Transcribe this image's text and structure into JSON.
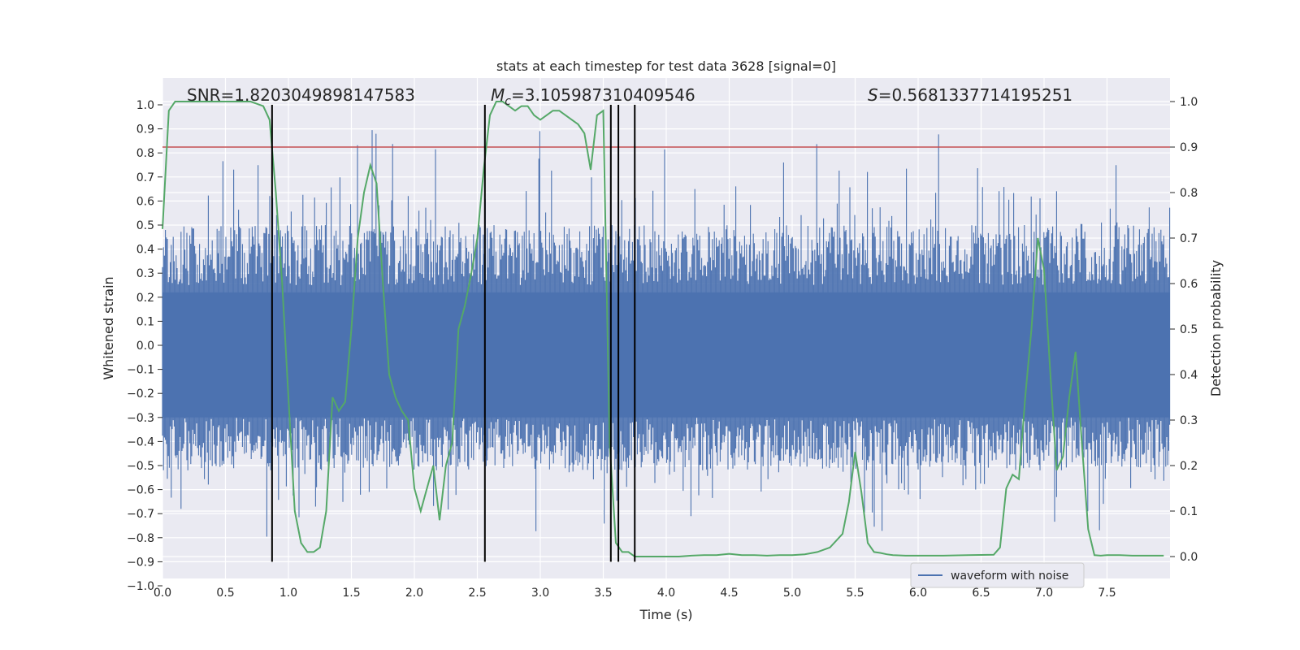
{
  "chart_data": {
    "type": "line",
    "title": "stats at each timestep for test data 3628 [signal=0]",
    "xlabel": "Time (s)",
    "ylabel": "Whitened strain",
    "ylabel_right": "Detection probability",
    "xlim": [
      0,
      8.0
    ],
    "ylim": [
      -1.0,
      1.1
    ],
    "ylim_right": [
      -0.05,
      1.05
    ],
    "x_ticks": [
      "0.0",
      "0.5",
      "1.0",
      "1.5",
      "2.0",
      "2.5",
      "3.0",
      "3.5",
      "4.0",
      "4.5",
      "5.0",
      "5.5",
      "6.0",
      "6.5",
      "7.0",
      "7.5"
    ],
    "y_ticks": [
      "−1.0",
      "−0.9",
      "−0.8",
      "−0.7",
      "−0.6",
      "−0.5",
      "−0.4",
      "−0.3",
      "−0.2",
      "−0.1",
      "0.0",
      "0.1",
      "0.2",
      "0.3",
      "0.4",
      "0.5",
      "0.6",
      "0.7",
      "0.8",
      "0.9",
      "1.0"
    ],
    "y_ticks_right": [
      "0.0",
      "0.1",
      "0.2",
      "0.3",
      "0.4",
      "0.5",
      "0.6",
      "0.7",
      "0.8",
      "0.9",
      "1.0"
    ],
    "annotations": {
      "snr": "SNR=1.8203049898147583",
      "mc_symbol": "M",
      "mc_sub": "c",
      "mc_value": "=3.105987310409546",
      "s_symbol": "S",
      "s_value": "=0.5681337714195251"
    },
    "legend": {
      "placement": "lower-right",
      "entries": [
        "waveform with noise"
      ]
    },
    "grid": true,
    "threshold": 0.9,
    "colors": {
      "waveform": "#4c72b0",
      "probability": "#55a868",
      "threshold": "#c44e52",
      "markers": "#000000",
      "background": "#eaeaf2",
      "grid": "#ffffff"
    },
    "vertical_markers": [
      0.87,
      2.56,
      3.56,
      3.62,
      3.75
    ],
    "probability_series": {
      "name": "Detection probability",
      "x": [
        0.0,
        0.05,
        0.1,
        0.15,
        0.2,
        0.3,
        0.4,
        0.5,
        0.6,
        0.7,
        0.8,
        0.85,
        0.9,
        0.95,
        1.0,
        1.05,
        1.1,
        1.15,
        1.2,
        1.25,
        1.3,
        1.35,
        1.4,
        1.45,
        1.5,
        1.55,
        1.6,
        1.65,
        1.7,
        1.75,
        1.8,
        1.85,
        1.9,
        1.95,
        2.0,
        2.05,
        2.1,
        2.15,
        2.2,
        2.25,
        2.3,
        2.35,
        2.4,
        2.45,
        2.5,
        2.55,
        2.6,
        2.65,
        2.7,
        2.75,
        2.8,
        2.85,
        2.9,
        2.95,
        3.0,
        3.05,
        3.1,
        3.15,
        3.2,
        3.25,
        3.3,
        3.35,
        3.4,
        3.45,
        3.5,
        3.55,
        3.6,
        3.65,
        3.7,
        3.75,
        3.8,
        3.85,
        3.9,
        3.95,
        4.0,
        4.05,
        4.1,
        4.2,
        4.3,
        4.4,
        4.5,
        4.6,
        4.7,
        4.8,
        4.9,
        5.0,
        5.1,
        5.2,
        5.3,
        5.4,
        5.45,
        5.5,
        5.55,
        5.6,
        5.65,
        5.7,
        5.75,
        5.8,
        5.9,
        6.0,
        6.2,
        6.4,
        6.6,
        6.65,
        6.7,
        6.75,
        6.8,
        6.85,
        6.9,
        6.95,
        7.0,
        7.05,
        7.1,
        7.15,
        7.2,
        7.25,
        7.3,
        7.35,
        7.4,
        7.45,
        7.5,
        7.6,
        7.7,
        7.8,
        7.9,
        7.95
      ],
      "y": [
        0.72,
        0.98,
        1.0,
        1.0,
        1.0,
        1.0,
        1.0,
        1.0,
        1.0,
        1.0,
        0.99,
        0.96,
        0.8,
        0.6,
        0.35,
        0.1,
        0.03,
        0.01,
        0.01,
        0.02,
        0.1,
        0.35,
        0.32,
        0.34,
        0.5,
        0.7,
        0.8,
        0.86,
        0.82,
        0.6,
        0.4,
        0.35,
        0.32,
        0.3,
        0.15,
        0.1,
        0.15,
        0.2,
        0.08,
        0.2,
        0.25,
        0.5,
        0.55,
        0.62,
        0.7,
        0.85,
        0.97,
        1.0,
        1.0,
        0.99,
        0.98,
        0.99,
        0.99,
        0.97,
        0.96,
        0.97,
        0.98,
        0.98,
        0.97,
        0.96,
        0.95,
        0.93,
        0.85,
        0.97,
        0.98,
        0.25,
        0.03,
        0.01,
        0.01,
        0.0,
        0.0,
        0.0,
        0.0,
        0.0,
        0.0,
        0.0,
        0.0,
        0.002,
        0.003,
        0.003,
        0.006,
        0.003,
        0.003,
        0.002,
        0.003,
        0.003,
        0.005,
        0.01,
        0.02,
        0.05,
        0.12,
        0.23,
        0.14,
        0.03,
        0.01,
        0.008,
        0.005,
        0.003,
        0.002,
        0.002,
        0.002,
        0.003,
        0.004,
        0.02,
        0.15,
        0.18,
        0.17,
        0.35,
        0.5,
        0.7,
        0.63,
        0.4,
        0.19,
        0.22,
        0.35,
        0.45,
        0.25,
        0.06,
        0.003,
        0.002,
        0.003,
        0.003,
        0.002,
        0.002,
        0.002,
        0.002
      ]
    }
  }
}
